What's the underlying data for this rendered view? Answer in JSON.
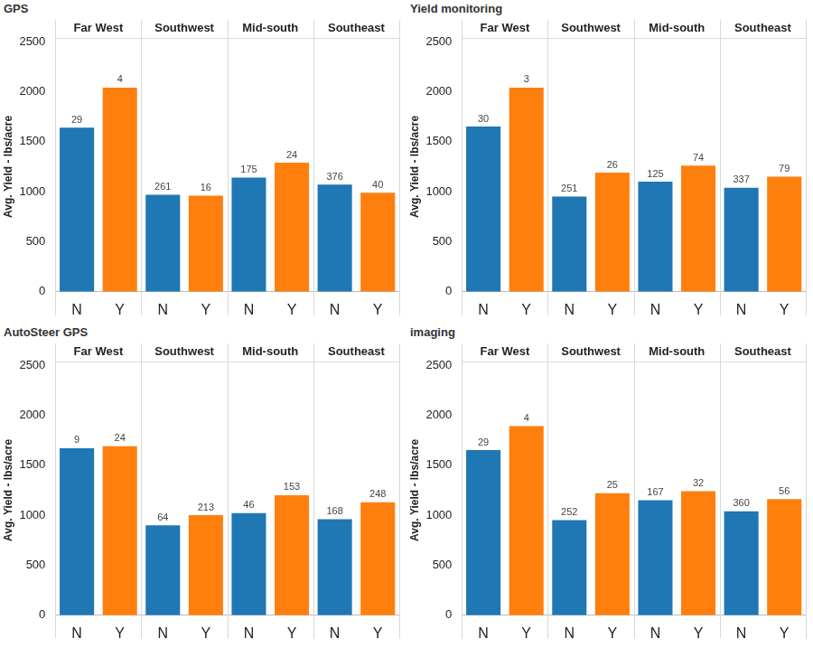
{
  "chart_data": [
    {
      "type": "bar",
      "title": "GPS",
      "y_label": "Avg. Yield - lbs/acre",
      "ylim": [
        0,
        2500
      ],
      "yticks": [
        0,
        500,
        1000,
        1500,
        2000,
        2500
      ],
      "grid": false,
      "categories": [
        "N",
        "Y"
      ],
      "colors": [
        "#1f77b4",
        "#ff7f0e"
      ],
      "facets": [
        {
          "title": "Far West",
          "values": [
            1640,
            2040
          ],
          "counts": [
            29,
            4
          ]
        },
        {
          "title": "Southwest",
          "values": [
            970,
            960
          ],
          "counts": [
            261,
            16
          ]
        },
        {
          "title": "Mid-south",
          "values": [
            1140,
            1290
          ],
          "counts": [
            175,
            24
          ]
        },
        {
          "title": "Southeast",
          "values": [
            1070,
            990
          ],
          "counts": [
            376,
            40
          ]
        }
      ]
    },
    {
      "type": "bar",
      "title": "Yield monitoring",
      "y_label": "Avg. Yield - lbs/acre",
      "ylim": [
        0,
        2500
      ],
      "yticks": [
        0,
        500,
        1000,
        1500,
        2000,
        2500
      ],
      "grid": false,
      "categories": [
        "N",
        "Y"
      ],
      "colors": [
        "#1f77b4",
        "#ff7f0e"
      ],
      "facets": [
        {
          "title": "Far West",
          "values": [
            1650,
            2040
          ],
          "counts": [
            30,
            3
          ]
        },
        {
          "title": "Southwest",
          "values": [
            950,
            1190
          ],
          "counts": [
            251,
            26
          ]
        },
        {
          "title": "Mid-south",
          "values": [
            1100,
            1260
          ],
          "counts": [
            125,
            74
          ]
        },
        {
          "title": "Southeast",
          "values": [
            1040,
            1150
          ],
          "counts": [
            337,
            79
          ]
        }
      ]
    },
    {
      "type": "bar",
      "title": "AutoSteer GPS",
      "y_label": "Avg. Yield - lbs/acre",
      "ylim": [
        0,
        2500
      ],
      "yticks": [
        0,
        500,
        1000,
        1500,
        2000,
        2500
      ],
      "grid": false,
      "categories": [
        "N",
        "Y"
      ],
      "colors": [
        "#1f77b4",
        "#ff7f0e"
      ],
      "facets": [
        {
          "title": "Far West",
          "values": [
            1670,
            1690
          ],
          "counts": [
            9,
            24
          ]
        },
        {
          "title": "Southwest",
          "values": [
            900,
            1000
          ],
          "counts": [
            64,
            213
          ]
        },
        {
          "title": "Mid-south",
          "values": [
            1020,
            1200
          ],
          "counts": [
            46,
            153
          ]
        },
        {
          "title": "Southeast",
          "values": [
            960,
            1130
          ],
          "counts": [
            168,
            248
          ]
        }
      ]
    },
    {
      "type": "bar",
      "title": "imaging",
      "y_label": "Avg. Yield - lbs/acre",
      "ylim": [
        0,
        2500
      ],
      "yticks": [
        0,
        500,
        1000,
        1500,
        2000,
        2500
      ],
      "grid": false,
      "categories": [
        "N",
        "Y"
      ],
      "colors": [
        "#1f77b4",
        "#ff7f0e"
      ],
      "facets": [
        {
          "title": "Far West",
          "values": [
            1650,
            1890
          ],
          "counts": [
            29,
            4
          ]
        },
        {
          "title": "Southwest",
          "values": [
            950,
            1220
          ],
          "counts": [
            252,
            25
          ]
        },
        {
          "title": "Mid-south",
          "values": [
            1150,
            1240
          ],
          "counts": [
            167,
            32
          ]
        },
        {
          "title": "Southeast",
          "values": [
            1040,
            1160
          ],
          "counts": [
            360,
            56
          ]
        }
      ]
    }
  ]
}
